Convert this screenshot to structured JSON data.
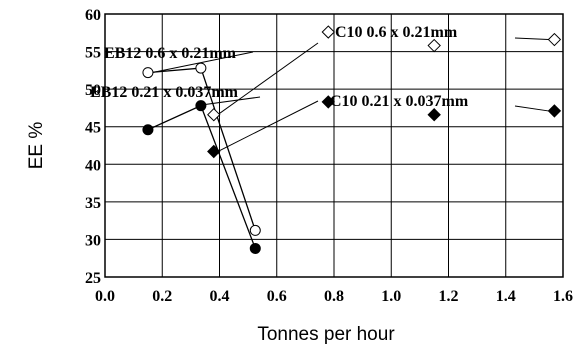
{
  "chart_data": {
    "type": "line",
    "xlabel": "Tonnes per hour",
    "ylabel": "EE %",
    "xlim": [
      0.0,
      1.6
    ],
    "ylim": [
      25,
      60
    ],
    "xticks": [
      "0.0",
      "0.2",
      "0.4",
      "0.6",
      "0.8",
      "1.0",
      "1.2",
      "1.4",
      "1.6"
    ],
    "yticks": [
      "25",
      "30",
      "35",
      "40",
      "45",
      "50",
      "55",
      "60"
    ],
    "grid": true,
    "legend": "none",
    "series": [
      {
        "marker": "open-circle",
        "connect": true,
        "points": [
          [
            0.15,
            52.2
          ],
          [
            0.335,
            52.8
          ],
          [
            0.525,
            31.2
          ]
        ]
      },
      {
        "marker": "filled-circle",
        "connect": true,
        "points": [
          [
            0.15,
            44.6
          ],
          [
            0.335,
            47.8
          ],
          [
            0.525,
            28.8
          ]
        ]
      },
      {
        "marker": "open-diamond",
        "connect": false,
        "points": [
          [
            0.38,
            46.6
          ],
          [
            0.78,
            57.6
          ],
          [
            1.15,
            55.8
          ],
          [
            1.57,
            56.6
          ]
        ]
      },
      {
        "marker": "filled-diamond",
        "connect": false,
        "points": [
          [
            0.38,
            41.7
          ],
          [
            0.78,
            48.3
          ],
          [
            1.15,
            46.6
          ],
          [
            1.57,
            47.1
          ]
        ]
      }
    ],
    "annotations": [
      {
        "text": "EB12 0.6 x 0.21mm"
      },
      {
        "text": "EB12 0.21 x 0.037mm"
      },
      {
        "text": "C10 0.6 x  0.21mm"
      },
      {
        "text": "C10 0.21 x 0.037mm"
      }
    ]
  }
}
